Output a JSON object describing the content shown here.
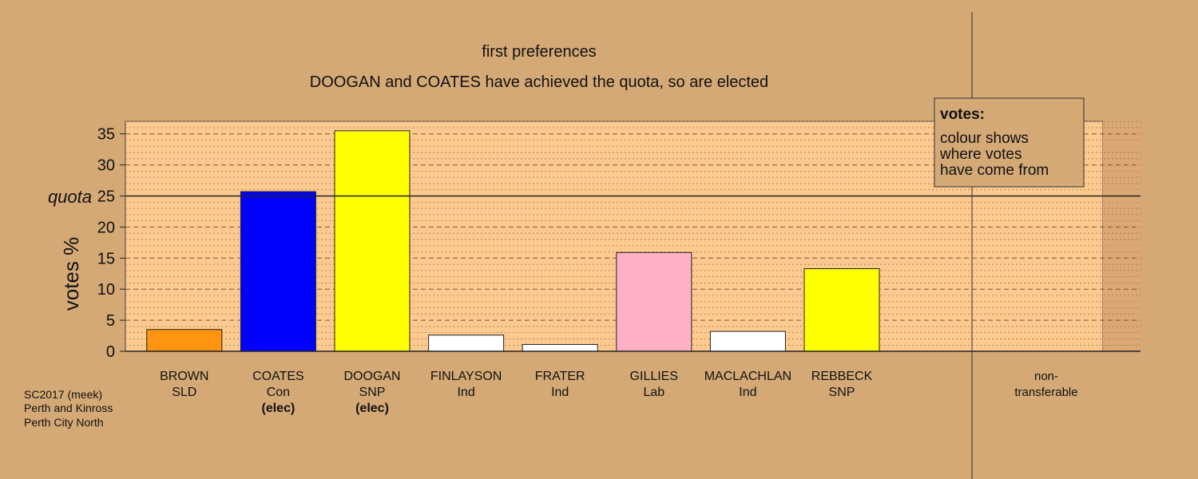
{
  "chart_data": {
    "type": "bar",
    "title": "first preferences",
    "subtitle": "DOOGAN and COATES have achieved the quota, so are elected",
    "ylabel": "votes %",
    "ylim": [
      0,
      37
    ],
    "yticks": [
      0,
      5,
      10,
      15,
      20,
      25,
      30,
      35
    ],
    "quota": 25,
    "quota_label": "quota",
    "categories": [
      {
        "name": "BROWN",
        "party": "SLD",
        "value": 3.5,
        "color": "#ff9410",
        "note": ""
      },
      {
        "name": "COATES",
        "party": "Con",
        "value": 25.7,
        "color": "#0000ff",
        "note": "(elec)"
      },
      {
        "name": "DOOGAN",
        "party": "SNP",
        "value": 35.5,
        "color": "#ffff00",
        "note": "(elec)"
      },
      {
        "name": "FINLAYSON",
        "party": "Ind",
        "value": 2.6,
        "color": "#ffffff",
        "note": ""
      },
      {
        "name": "FRATER",
        "party": "Ind",
        "value": 1.1,
        "color": "#ffffff",
        "note": ""
      },
      {
        "name": "GILLIES",
        "party": "Lab",
        "value": 15.9,
        "color": "#ffb0c4",
        "note": ""
      },
      {
        "name": "MACLACHLAN",
        "party": "Ind",
        "value": 3.2,
        "color": "#ffffff",
        "note": ""
      },
      {
        "name": "REBBECK",
        "party": "SNP",
        "value": 13.3,
        "color": "#ffff00",
        "note": ""
      }
    ],
    "nontransferable": {
      "line1": "non-",
      "line2": "transferable",
      "value": 0
    },
    "legend": {
      "title": "votes:",
      "lines": [
        "colour shows",
        "where votes",
        "have come from"
      ],
      "placement": "top-right"
    },
    "grid": true
  },
  "footer": {
    "lines": [
      "SC2017 (meek)",
      "Perth and Kinross",
      "Perth City North"
    ]
  },
  "colors": {
    "background": "#d4a976",
    "plot_area": "#fdc98e",
    "plot_area_right": "#dba874"
  }
}
